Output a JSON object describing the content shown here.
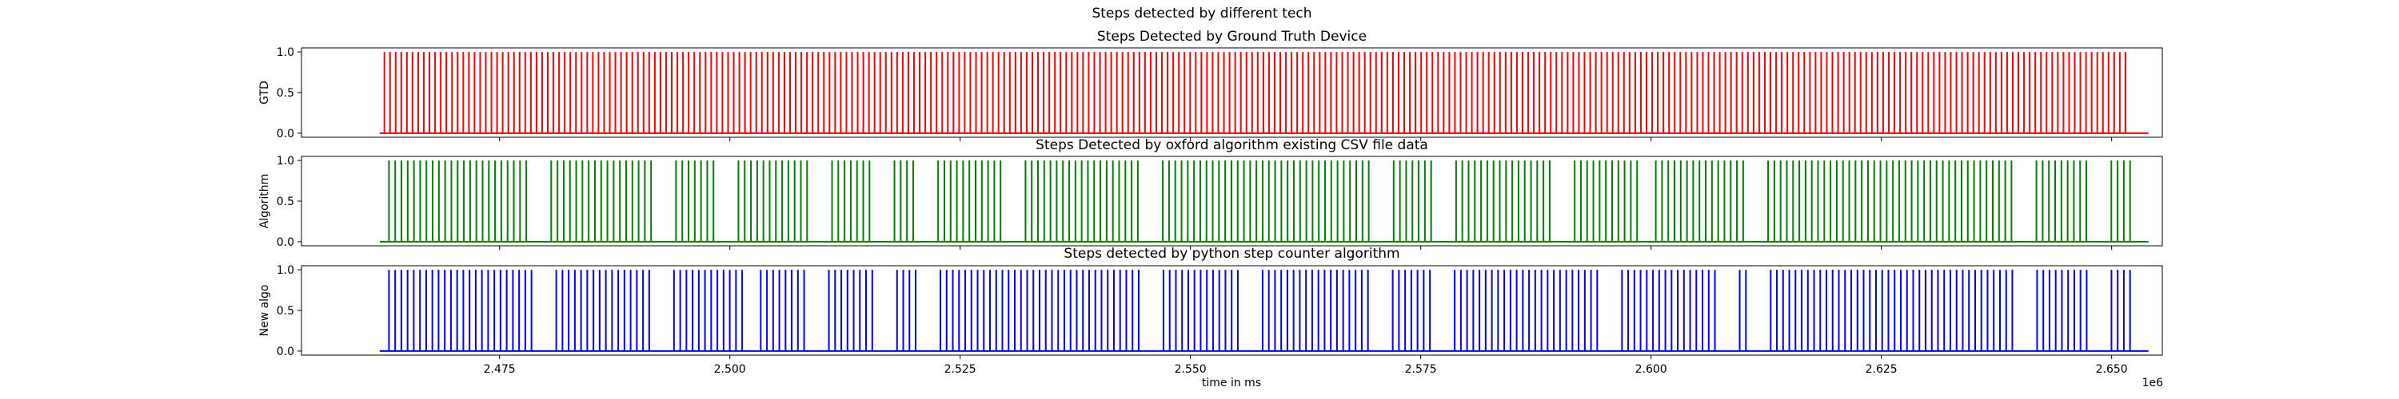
{
  "figure": {
    "suptitle": "Steps detected by different tech",
    "xlabel": "time in ms",
    "offset_text": "1e6"
  },
  "chart_data": [
    {
      "type": "line",
      "title": "Steps Detected by Ground Truth Device",
      "ylabel": "GTD",
      "color": "#ff0000",
      "xlim": [
        2.4535,
        2.6555
      ],
      "ylim": [
        -0.05,
        1.05
      ],
      "x_unit_multiplier": "1e6",
      "x_ticks": [
        2.475,
        2.5,
        2.525,
        2.55,
        2.575,
        2.6,
        2.625,
        2.65
      ],
      "x_tick_labels": [],
      "y_ticks": [
        0.0,
        0.5,
        1.0
      ],
      "y_tick_labels": [
        "0.0",
        "0.5",
        "1.0"
      ],
      "data_start": 2.462,
      "data_end": 2.654,
      "step_range": [
        2.4625,
        2.6515
      ],
      "step_count": 310,
      "gaps": [],
      "step_value": 1.0,
      "baseline_value": 0.0
    },
    {
      "type": "line",
      "title": "Steps Detected by oxford algorithm existing CSV file data",
      "ylabel": "Algorithm",
      "color": "#008000",
      "xlim": [
        2.4535,
        2.6555
      ],
      "ylim": [
        -0.05,
        1.05
      ],
      "x_unit_multiplier": "1e6",
      "x_ticks": [
        2.475,
        2.5,
        2.525,
        2.55,
        2.575,
        2.6,
        2.625,
        2.65
      ],
      "x_tick_labels": [],
      "y_ticks": [
        0.0,
        0.5,
        1.0
      ],
      "y_tick_labels": [
        "0.0",
        "0.5",
        "1.0"
      ],
      "data_start": 2.462,
      "data_end": 2.654,
      "step_range": [
        2.463,
        2.652
      ],
      "step_count": 280,
      "gaps": [
        [
          2.4785,
          2.4805
        ],
        [
          2.4915,
          2.4935
        ],
        [
          2.4985,
          2.5003
        ],
        [
          2.5085,
          2.5105
        ],
        [
          2.5155,
          2.5175
        ],
        [
          2.5205,
          2.5225
        ],
        [
          2.5295,
          2.5315
        ],
        [
          2.5445,
          2.5465
        ],
        [
          2.5695,
          2.5715
        ],
        [
          2.5765,
          2.5785
        ],
        [
          2.5895,
          2.5915
        ],
        [
          2.5985,
          2.6005
        ],
        [
          2.6105,
          2.6125
        ],
        [
          2.6395,
          2.6415
        ],
        [
          2.6475,
          2.6495
        ]
      ],
      "step_value": 1.0,
      "baseline_value": 0.0
    },
    {
      "type": "line",
      "title": "Steps detected by python step counter algorithm",
      "ylabel": "New algo",
      "color": "#0000ff",
      "xlim": [
        2.4535,
        2.6555
      ],
      "ylim": [
        -0.05,
        1.05
      ],
      "x_unit_multiplier": "1e6",
      "x_ticks": [
        2.475,
        2.5,
        2.525,
        2.55,
        2.575,
        2.6,
        2.625,
        2.65
      ],
      "x_tick_labels": [
        "2.475",
        "2.500",
        "2.525",
        "2.550",
        "2.575",
        "2.600",
        "2.625",
        "2.650"
      ],
      "y_ticks": [
        0.0,
        0.5,
        1.0
      ],
      "y_tick_labels": [
        "0.0",
        "0.5",
        "1.0"
      ],
      "data_start": 2.462,
      "data_end": 2.654,
      "step_range": [
        2.463,
        2.652
      ],
      "step_count": 282,
      "gaps": [
        [
          2.4785,
          2.4805
        ],
        [
          2.4915,
          2.4935
        ],
        [
          2.5015,
          2.5033
        ],
        [
          2.5085,
          2.5105
        ],
        [
          2.5155,
          2.5175
        ],
        [
          2.5205,
          2.5225
        ],
        [
          2.5445,
          2.5465
        ],
        [
          2.5555,
          2.5575
        ],
        [
          2.5695,
          2.5715
        ],
        [
          2.5765,
          2.5785
        ],
        [
          2.5945,
          2.5965
        ],
        [
          2.6075,
          2.6095
        ],
        [
          2.6105,
          2.6125
        ],
        [
          2.6395,
          2.6415
        ],
        [
          2.6475,
          2.6495
        ]
      ],
      "step_value": 1.0,
      "baseline_value": 0.0
    }
  ]
}
